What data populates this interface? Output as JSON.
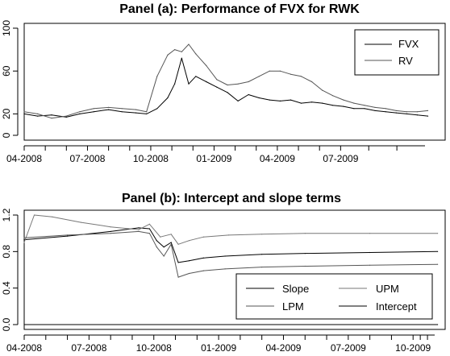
{
  "chart_data": [
    {
      "type": "line",
      "title": "Panel (a): Performance of FVX for RWK",
      "xlabel": "",
      "ylabel": "",
      "x_ticks": [
        "04-2008",
        "07-2008",
        "10-2008",
        "01-2009",
        "04-2009",
        "07-2009"
      ],
      "x_range": [
        "2008-04",
        "2009-11"
      ],
      "ylim": [
        0,
        100
      ],
      "y_ticks": [
        0,
        20,
        60,
        100
      ],
      "legend": {
        "position": "top-right",
        "entries": [
          "FVX",
          "RV"
        ]
      },
      "colors": {
        "FVX": "#000000",
        "RV": "#555555"
      },
      "series": [
        {
          "name": "FVX",
          "x": [
            "2008-04-01",
            "2008-04-20",
            "2008-05-10",
            "2008-06-01",
            "2008-06-20",
            "2008-07-10",
            "2008-08-01",
            "2008-08-20",
            "2008-09-10",
            "2008-09-25",
            "2008-10-10",
            "2008-10-25",
            "2008-11-05",
            "2008-11-15",
            "2008-11-25",
            "2008-12-05",
            "2008-12-20",
            "2009-01-05",
            "2009-01-20",
            "2009-02-05",
            "2009-02-20",
            "2009-03-05",
            "2009-03-20",
            "2009-04-05",
            "2009-04-20",
            "2009-05-05",
            "2009-05-20",
            "2009-06-05",
            "2009-06-20",
            "2009-07-05",
            "2009-07-20",
            "2009-08-05",
            "2009-08-20",
            "2009-09-05",
            "2009-09-20",
            "2009-10-05",
            "2009-10-20",
            "2009-11-05"
          ],
          "values": [
            20,
            18,
            19,
            17,
            20,
            22,
            24,
            22,
            21,
            20,
            25,
            35,
            48,
            72,
            48,
            55,
            50,
            45,
            40,
            32,
            38,
            35,
            33,
            32,
            33,
            30,
            31,
            30,
            28,
            27,
            25,
            25,
            23,
            22,
            21,
            20,
            19,
            18
          ]
        },
        {
          "name": "RV",
          "x": [
            "2008-04-01",
            "2008-04-20",
            "2008-05-10",
            "2008-06-01",
            "2008-06-20",
            "2008-07-10",
            "2008-08-01",
            "2008-08-20",
            "2008-09-10",
            "2008-09-25",
            "2008-10-10",
            "2008-10-25",
            "2008-11-05",
            "2008-11-15",
            "2008-11-25",
            "2008-12-05",
            "2008-12-20",
            "2009-01-05",
            "2009-01-20",
            "2009-02-05",
            "2009-02-20",
            "2009-03-05",
            "2009-03-20",
            "2009-04-05",
            "2009-04-20",
            "2009-05-05",
            "2009-05-20",
            "2009-06-05",
            "2009-06-20",
            "2009-07-05",
            "2009-07-20",
            "2009-08-05",
            "2009-08-20",
            "2009-09-05",
            "2009-09-20",
            "2009-10-05",
            "2009-10-20",
            "2009-11-05"
          ],
          "values": [
            22,
            20,
            16,
            18,
            22,
            25,
            26,
            25,
            24,
            22,
            55,
            75,
            80,
            78,
            85,
            76,
            65,
            52,
            47,
            48,
            50,
            55,
            60,
            60,
            57,
            55,
            50,
            42,
            37,
            33,
            30,
            28,
            26,
            25,
            23,
            22,
            22,
            23
          ]
        }
      ]
    },
    {
      "type": "line",
      "title": "Panel (b): Intercept and slope terms",
      "xlabel": "",
      "ylabel": "",
      "x_ticks": [
        "04-2008",
        "07-2008",
        "10-2008",
        "01-2009",
        "04-2009",
        "07-2009",
        "10-2009"
      ],
      "x_range": [
        "2008-04",
        "2009-11"
      ],
      "ylim": [
        0,
        1.2
      ],
      "y_ticks": [
        0.0,
        0.4,
        0.8,
        1.2
      ],
      "legend": {
        "position": "bottom-right",
        "entries": [
          "Slope",
          "UPM",
          "LPM",
          "Intercept"
        ]
      },
      "colors": {
        "Slope": "#000000",
        "UPM": "#777777",
        "LPM": "#555555",
        "Intercept": "#000000"
      },
      "series": [
        {
          "name": "Slope",
          "x": [
            "2008-04-01",
            "2008-06-01",
            "2008-08-01",
            "2008-09-10",
            "2008-09-25",
            "2008-10-05",
            "2008-10-15",
            "2008-10-25",
            "2008-11-05",
            "2008-11-20",
            "2008-12-10",
            "2009-01-10",
            "2009-03-01",
            "2009-05-01",
            "2009-08-01",
            "2009-11-05"
          ],
          "values": [
            0.93,
            0.97,
            1.02,
            1.06,
            1.05,
            0.92,
            0.85,
            0.9,
            0.68,
            0.7,
            0.73,
            0.75,
            0.77,
            0.78,
            0.79,
            0.8
          ]
        },
        {
          "name": "UPM",
          "x": [
            "2008-04-01",
            "2008-04-15",
            "2008-05-10",
            "2008-06-20",
            "2008-08-01",
            "2008-09-10",
            "2008-09-25",
            "2008-10-10",
            "2008-10-25",
            "2008-11-05",
            "2008-11-20",
            "2008-12-10",
            "2009-01-15",
            "2009-03-01",
            "2009-05-01",
            "2009-08-01",
            "2009-11-05"
          ],
          "values": [
            0.9,
            1.2,
            1.18,
            1.12,
            1.07,
            1.04,
            1.1,
            0.96,
            0.99,
            0.88,
            0.92,
            0.96,
            0.98,
            0.99,
            1.0,
            1.0,
            1.0
          ]
        },
        {
          "name": "LPM",
          "x": [
            "2008-04-01",
            "2008-06-01",
            "2008-08-01",
            "2008-09-10",
            "2008-09-25",
            "2008-10-05",
            "2008-10-15",
            "2008-10-25",
            "2008-11-05",
            "2008-11-20",
            "2008-12-10",
            "2009-01-10",
            "2009-03-01",
            "2009-05-01",
            "2009-08-01",
            "2009-11-05"
          ],
          "values": [
            0.95,
            0.98,
            1.0,
            1.02,
            1.0,
            0.85,
            0.75,
            0.88,
            0.52,
            0.56,
            0.59,
            0.61,
            0.63,
            0.64,
            0.65,
            0.66
          ]
        },
        {
          "name": "Intercept",
          "x": [
            "2008-04-01",
            "2009-11-05"
          ],
          "values": [
            0.0,
            0.0
          ]
        }
      ]
    }
  ]
}
